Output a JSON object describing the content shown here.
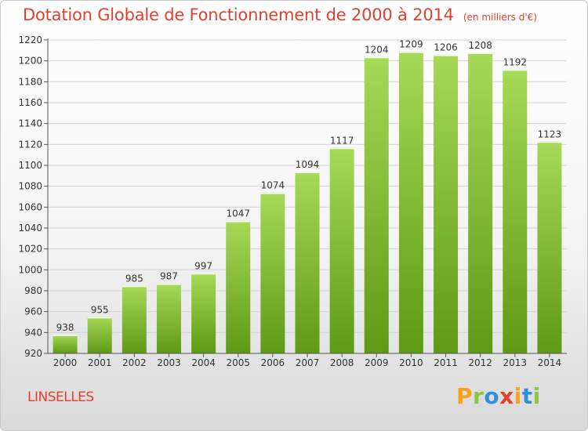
{
  "header": {
    "title": "Dotation Globale de Fonctionnement de 2000 à 2014",
    "unit": "(en milliers d'€)"
  },
  "footer": {
    "place": "LINSELLES",
    "logo": [
      "P",
      "r",
      "o",
      "x",
      "i",
      "t",
      "i"
    ],
    "logo_colors": [
      "#f7a21c",
      "#8cc63f",
      "#2f8fd8",
      "#e0402e",
      "#f7a21c",
      "#2f8fd8",
      "#8cc63f"
    ]
  },
  "chart_data": {
    "type": "bar",
    "title": "Dotation Globale de Fonctionnement de 2000 à 2014",
    "subtitle": "(en milliers d'€)",
    "xlabel": "",
    "ylabel": "",
    "categories": [
      "2000",
      "2001",
      "2002",
      "2003",
      "2004",
      "2005",
      "2006",
      "2007",
      "2008",
      "2009",
      "2010",
      "2011",
      "2012",
      "2013",
      "2014"
    ],
    "values": [
      938,
      955,
      985,
      987,
      997,
      1047,
      1074,
      1094,
      1117,
      1204,
      1209,
      1206,
      1208,
      1192,
      1123
    ],
    "ylim": [
      920,
      1220
    ],
    "yticks": [
      920,
      940,
      960,
      980,
      1000,
      1020,
      1040,
      1060,
      1080,
      1100,
      1120,
      1140,
      1160,
      1180,
      1200,
      1220
    ],
    "grid": true,
    "bar_color": "#8cc63f",
    "bar_color_dark": "#5e9a14"
  }
}
